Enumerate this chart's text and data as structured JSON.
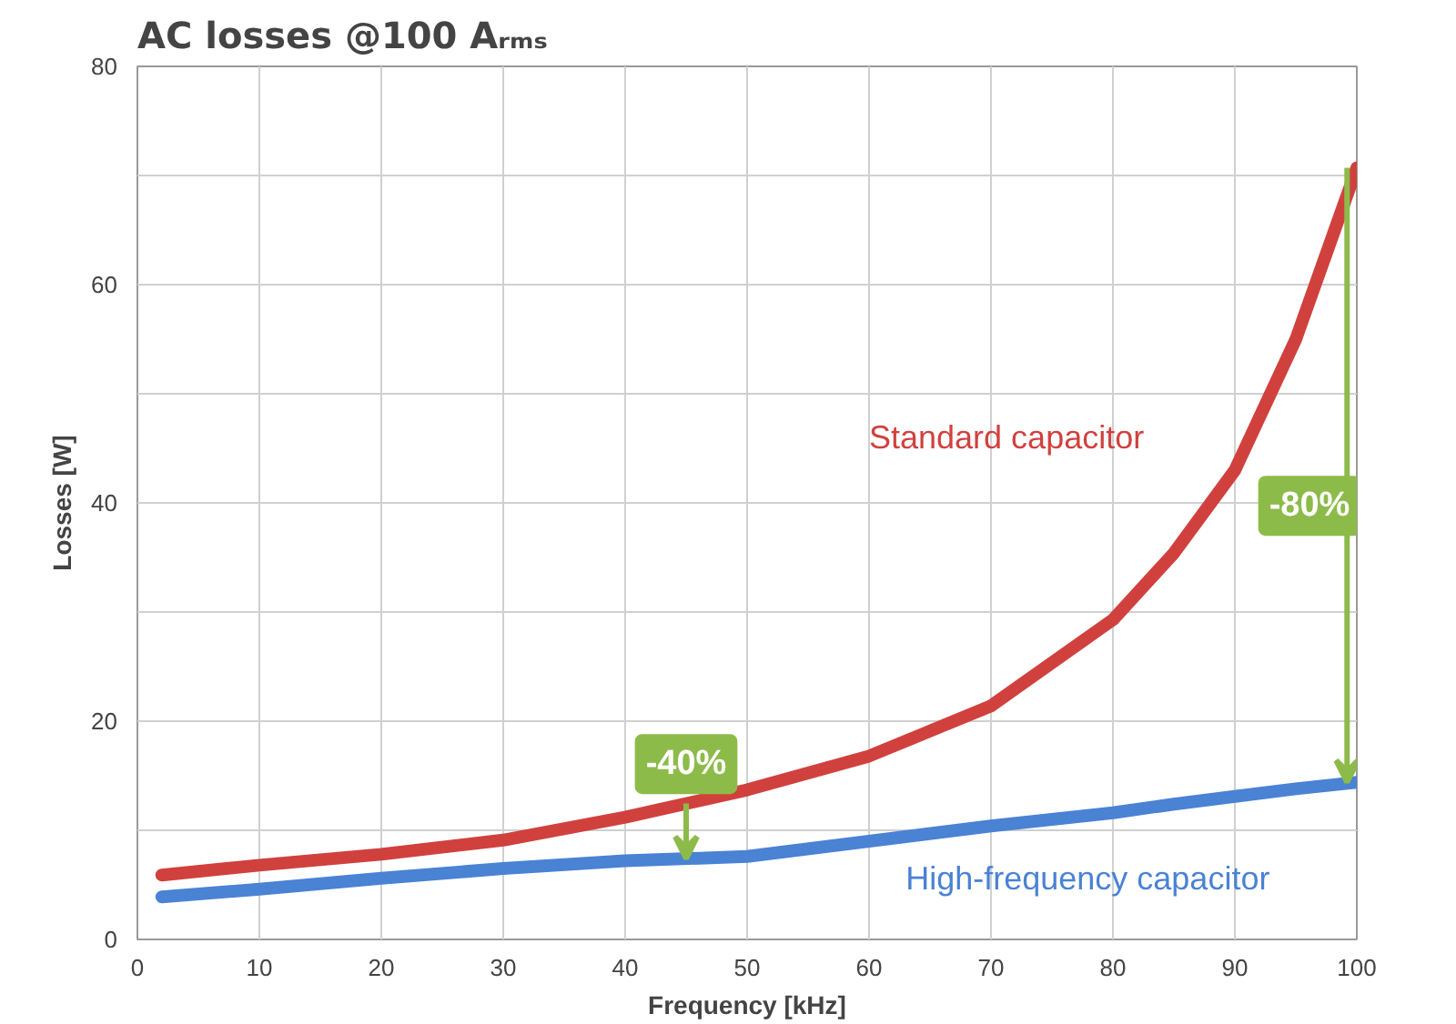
{
  "chart_data": {
    "type": "line",
    "title": "AC losses @100 Aᵣₘₛ",
    "xlabel": "Frequency [kHz]",
    "ylabel": "Losses [W]",
    "x": [
      2,
      10,
      20,
      30,
      40,
      50,
      60,
      70,
      80,
      85,
      90,
      95,
      100
    ],
    "series": [
      {
        "name": "Standard capacitor",
        "color": "#d0413e",
        "values": [
          5.9,
          6.8,
          7.8,
          9.1,
          11.2,
          13.7,
          16.8,
          21.4,
          29.3,
          35.4,
          43,
          55,
          70.7
        ]
      },
      {
        "name": "High-frequency capacitor",
        "color": "#4a82d4",
        "values": [
          3.9,
          4.6,
          5.6,
          6.5,
          7.2,
          7.6,
          9.0,
          10.4,
          11.6,
          12.4,
          13.1,
          13.8,
          14.4
        ]
      }
    ],
    "xlim": [
      0,
      100
    ],
    "ylim": [
      0,
      80
    ],
    "xticks": [
      0,
      10,
      20,
      30,
      40,
      50,
      60,
      70,
      80,
      90,
      100
    ],
    "yticks": [
      0,
      {
        "value": 10,
        "label": null
      },
      20,
      {
        "value": 30,
        "label": null
      },
      40,
      {
        "value": 50,
        "label": null
      },
      60,
      {
        "value": 70,
        "label": null
      },
      80
    ],
    "grid": true,
    "marker": "none",
    "line_style": "solid",
    "annotations": [
      {
        "text": "-40%",
        "x": 45,
        "y": 12.4
      },
      "-80%"
    ]
  }
}
